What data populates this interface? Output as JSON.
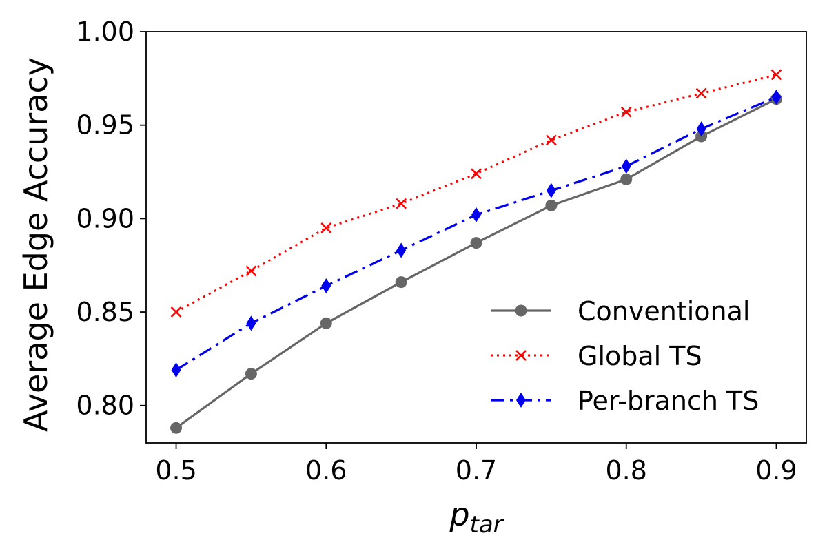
{
  "chart_data": {
    "type": "line",
    "title": "",
    "xlabel": "p",
    "xlabel_subscript": "tar",
    "ylabel": "Average Edge Accuracy",
    "x": [
      0.5,
      0.55,
      0.6,
      0.65,
      0.7,
      0.75,
      0.8,
      0.85,
      0.9
    ],
    "xlim": [
      0.48,
      0.92
    ],
    "ylim": [
      0.78,
      1.0
    ],
    "xticks": [
      0.5,
      0.6,
      0.7,
      0.8,
      0.9
    ],
    "xtick_labels": [
      "0.5",
      "0.6",
      "0.7",
      "0.8",
      "0.9"
    ],
    "yticks": [
      0.8,
      0.85,
      0.9,
      0.95,
      1.0
    ],
    "ytick_labels": [
      "0.80",
      "0.85",
      "0.90",
      "0.95",
      "1.00"
    ],
    "grid": false,
    "legend_position": "lower-right",
    "series": [
      {
        "name": "Conventional",
        "values": [
          0.788,
          0.817,
          0.844,
          0.866,
          0.887,
          0.907,
          0.921,
          0.944,
          0.964
        ],
        "color": "#666666",
        "line_style": "solid",
        "marker": "circle"
      },
      {
        "name": "Global TS",
        "values": [
          0.85,
          0.872,
          0.895,
          0.908,
          0.924,
          0.942,
          0.957,
          0.967,
          0.977
        ],
        "color": "#ff0000",
        "line_style": "dotted",
        "marker": "x"
      },
      {
        "name": "Per-branch TS",
        "values": [
          0.819,
          0.844,
          0.864,
          0.883,
          0.902,
          0.915,
          0.928,
          0.948,
          0.965
        ],
        "color": "#0000ee",
        "line_style": "dashdot",
        "marker": "diamond"
      }
    ]
  }
}
